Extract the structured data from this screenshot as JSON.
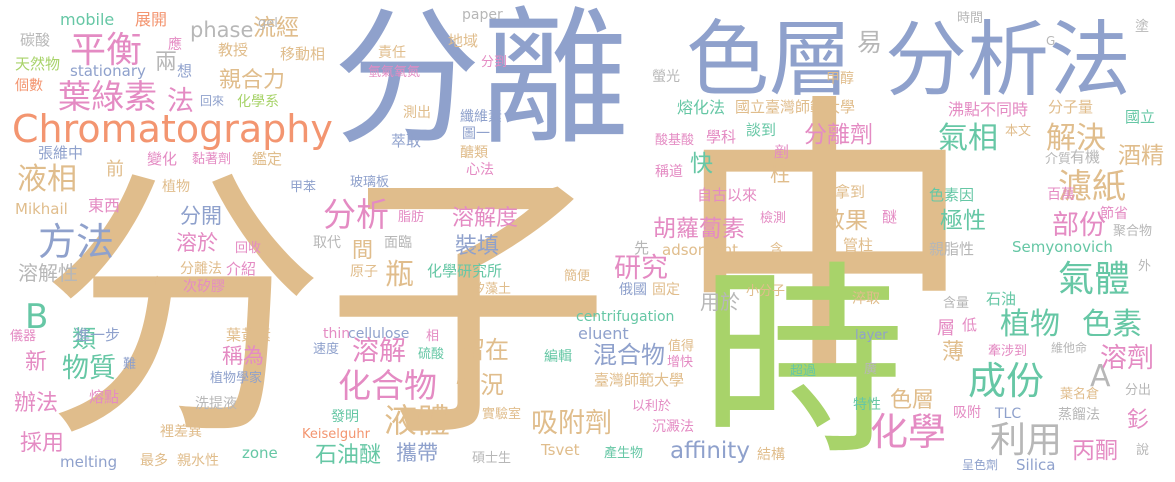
{
  "palette": {
    "tan": "#e0bd8c",
    "blue": "#8fa1cc",
    "green": "#a8d36a",
    "pink": "#e48bc3",
    "teal": "#66c7a5",
    "orange": "#f39570",
    "gray": "#b7b7b7",
    "yellow": "#e6c64a"
  },
  "words": [
    {
      "text": "分子",
      "color": "tan"
    },
    {
      "text": "中",
      "color": "tan"
    },
    {
      "text": "分離",
      "color": "blue"
    },
    {
      "text": "時",
      "color": "green"
    },
    {
      "text": "色層",
      "color": "blue"
    },
    {
      "text": "分析法",
      "color": "blue"
    },
    {
      "text": "Chromatography",
      "color": "orange"
    },
    {
      "text": "平衡",
      "color": "pink"
    },
    {
      "text": "葉綠素",
      "color": "pink"
    },
    {
      "text": "方法",
      "color": "blue"
    },
    {
      "text": "分析",
      "color": "pink"
    },
    {
      "text": "化合物",
      "color": "pink"
    },
    {
      "text": "液體",
      "color": "tan"
    },
    {
      "text": "成份",
      "color": "teal"
    },
    {
      "text": "化學",
      "color": "pink"
    },
    {
      "text": "利用",
      "color": "gray"
    },
    {
      "text": "氣體",
      "color": "teal"
    },
    {
      "text": "植物",
      "color": "teal"
    },
    {
      "text": "色素",
      "color": "teal"
    },
    {
      "text": "濾紙",
      "color": "tan"
    },
    {
      "text": "分離劑",
      "color": "pink"
    },
    {
      "text": "氣相",
      "color": "teal"
    },
    {
      "text": "解決",
      "color": "tan"
    },
    {
      "text": "部份",
      "color": "pink"
    },
    {
      "text": "溶劑",
      "color": "pink"
    },
    {
      "text": "物質",
      "color": "teal"
    },
    {
      "text": "溶解",
      "color": "pink"
    },
    {
      "text": "研究",
      "color": "pink"
    },
    {
      "text": "吸附劑",
      "color": "tan"
    },
    {
      "text": "情況",
      "color": "tan"
    },
    {
      "text": "留在",
      "color": "tan"
    },
    {
      "text": "混合物",
      "color": "blue"
    },
    {
      "text": "胡蘿蔔素",
      "color": "pink"
    },
    {
      "text": "溶解度",
      "color": "pink"
    },
    {
      "text": "裝填",
      "color": "blue"
    },
    {
      "text": "瓶",
      "color": "tan"
    },
    {
      "text": "液相",
      "color": "tan"
    },
    {
      "text": "B",
      "color": "teal"
    },
    {
      "text": "A",
      "color": "gray"
    },
    {
      "text": "易",
      "color": "gray"
    },
    {
      "text": "法",
      "color": "pink"
    },
    {
      "text": "流經",
      "color": "tan"
    },
    {
      "text": "phase",
      "color": "gray"
    },
    {
      "text": "親合力",
      "color": "tan"
    },
    {
      "text": "兩",
      "color": "gray"
    },
    {
      "text": "效果",
      "color": "tan"
    },
    {
      "text": "極性",
      "color": "teal"
    },
    {
      "text": "快",
      "color": "teal"
    },
    {
      "text": "柱",
      "color": "tan"
    },
    {
      "text": "色層",
      "color": "tan"
    },
    {
      "text": "石油醚",
      "color": "teal"
    },
    {
      "text": "攜帶",
      "color": "blue"
    },
    {
      "text": "affinity",
      "color": "blue"
    },
    {
      "text": "丙酮",
      "color": "pink"
    },
    {
      "text": "酒精",
      "color": "tan"
    },
    {
      "text": "溶解性",
      "color": "gray"
    },
    {
      "text": "分開",
      "color": "blue"
    },
    {
      "text": "溶於",
      "color": "pink"
    },
    {
      "text": "稱為",
      "color": "pink"
    },
    {
      "text": "類",
      "color": "teal"
    },
    {
      "text": "辦法",
      "color": "pink"
    },
    {
      "text": "採用",
      "color": "pink"
    },
    {
      "text": "新",
      "color": "pink"
    },
    {
      "text": "薄",
      "color": "tan"
    },
    {
      "text": "層",
      "color": "pink"
    },
    {
      "text": "釤",
      "color": "pink"
    },
    {
      "text": "用於",
      "color": "gray"
    },
    {
      "text": "間",
      "color": "tan"
    },
    {
      "text": "碳酸",
      "color": "gray"
    },
    {
      "text": "mobile",
      "color": "teal"
    },
    {
      "text": "展開",
      "color": "orange"
    },
    {
      "text": "應",
      "color": "pink"
    },
    {
      "text": "天然物",
      "color": "green"
    },
    {
      "text": "stationary",
      "color": "blue"
    },
    {
      "text": "想",
      "color": "blue"
    },
    {
      "text": "個數",
      "color": "orange"
    },
    {
      "text": "教授",
      "color": "tan"
    },
    {
      "text": "移動相",
      "color": "tan"
    },
    {
      "text": "gel",
      "color": "gray"
    },
    {
      "text": "責任",
      "color": "tan"
    },
    {
      "text": "氫氣氧氮",
      "color": "pink"
    },
    {
      "text": "paper",
      "color": "gray"
    },
    {
      "text": "地域",
      "color": "tan"
    },
    {
      "text": "分到",
      "color": "pink"
    },
    {
      "text": "時間",
      "color": "gray"
    },
    {
      "text": "甲醇",
      "color": "tan"
    },
    {
      "text": "塗",
      "color": "gray"
    },
    {
      "text": "螢光",
      "color": "gray"
    },
    {
      "text": "熔化法",
      "color": "teal"
    },
    {
      "text": "國立臺灣師範大學",
      "color": "tan"
    },
    {
      "text": "沸點不同時",
      "color": "pink"
    },
    {
      "text": "分子量",
      "color": "tan"
    },
    {
      "text": "國立",
      "color": "teal"
    },
    {
      "text": "本文",
      "color": "tan"
    },
    {
      "text": "回來",
      "color": "blue"
    },
    {
      "text": "化學系",
      "color": "green"
    },
    {
      "text": "測出",
      "color": "tan"
    },
    {
      "text": "纖維素",
      "color": "blue"
    },
    {
      "text": "圖一",
      "color": "blue"
    },
    {
      "text": "萃取",
      "color": "blue"
    },
    {
      "text": "酸基酸",
      "color": "pink"
    },
    {
      "text": "學科",
      "color": "pink"
    },
    {
      "text": "談到",
      "color": "teal"
    },
    {
      "text": "張維中",
      "color": "blue"
    },
    {
      "text": "變化",
      "color": "pink"
    },
    {
      "text": "黏著劑",
      "color": "pink"
    },
    {
      "text": "鑑定",
      "color": "tan"
    },
    {
      "text": "醣類",
      "color": "tan"
    },
    {
      "text": "心法",
      "color": "pink"
    },
    {
      "text": "剷",
      "color": "pink"
    },
    {
      "text": "介質",
      "color": "gray"
    },
    {
      "text": "有機",
      "color": "gray"
    },
    {
      "text": "前",
      "color": "tan"
    },
    {
      "text": "植物",
      "color": "tan"
    },
    {
      "text": "甲苯",
      "color": "blue"
    },
    {
      "text": "玻璃板",
      "color": "blue"
    },
    {
      "text": "稱道",
      "color": "pink"
    },
    {
      "text": "自古以來",
      "color": "pink"
    },
    {
      "text": "色素因",
      "color": "teal"
    },
    {
      "text": "百萬",
      "color": "pink"
    },
    {
      "text": "Mikhail",
      "color": "tan"
    },
    {
      "text": "東西",
      "color": "pink"
    },
    {
      "text": "脂肪",
      "color": "pink"
    },
    {
      "text": "拿到",
      "color": "tan"
    },
    {
      "text": "醚",
      "color": "pink"
    },
    {
      "text": "節省",
      "color": "pink"
    },
    {
      "text": "聚合物",
      "color": "gray"
    },
    {
      "text": "取代",
      "color": "gray"
    },
    {
      "text": "面臨",
      "color": "gray"
    },
    {
      "text": "先",
      "color": "gray"
    },
    {
      "text": "檢測",
      "color": "pink"
    },
    {
      "text": "管柱",
      "color": "tan"
    },
    {
      "text": "親脂性",
      "color": "gray"
    },
    {
      "text": "Semyonovich",
      "color": "teal"
    },
    {
      "text": "回收",
      "color": "pink"
    },
    {
      "text": "介紹",
      "color": "pink"
    },
    {
      "text": "分離法",
      "color": "tan"
    },
    {
      "text": "原子",
      "color": "tan"
    },
    {
      "text": "化學研究所",
      "color": "teal"
    },
    {
      "text": "adsorbent",
      "color": "tan"
    },
    {
      "text": "含",
      "color": "tan"
    },
    {
      "text": "外",
      "color": "gray"
    },
    {
      "text": "年",
      "color": "tan"
    },
    {
      "text": "次矽膠",
      "color": "pink"
    },
    {
      "text": "矽藻土",
      "color": "tan"
    },
    {
      "text": "簡便",
      "color": "tan"
    },
    {
      "text": "俄國",
      "color": "blue"
    },
    {
      "text": "固定",
      "color": "tan"
    },
    {
      "text": "小分子",
      "color": "tan"
    },
    {
      "text": "石油",
      "color": "teal"
    },
    {
      "text": "淬取",
      "color": "tan"
    },
    {
      "text": "含量",
      "color": "gray"
    },
    {
      "text": "低",
      "color": "pink"
    },
    {
      "text": "進一步",
      "color": "blue"
    },
    {
      "text": "葉黃素",
      "color": "tan"
    },
    {
      "text": "thin",
      "color": "pink"
    },
    {
      "text": "cellulose",
      "color": "blue"
    },
    {
      "text": "相",
      "color": "pink"
    },
    {
      "text": "eluent",
      "color": "blue"
    },
    {
      "text": "值得",
      "color": "tan"
    },
    {
      "text": "layer",
      "color": "blue"
    },
    {
      "text": "牽涉到",
      "color": "pink"
    },
    {
      "text": "維他命",
      "color": "gray"
    },
    {
      "text": "儀器",
      "color": "pink"
    },
    {
      "text": "難",
      "color": "blue"
    },
    {
      "text": "植物學家",
      "color": "blue"
    },
    {
      "text": "速度",
      "color": "blue"
    },
    {
      "text": "硫酸",
      "color": "teal"
    },
    {
      "text": "centrifugation",
      "color": "teal"
    },
    {
      "text": "增快",
      "color": "pink"
    },
    {
      "text": "編輯",
      "color": "teal"
    },
    {
      "text": "葉名倉",
      "color": "tan"
    },
    {
      "text": "超過",
      "color": "teal"
    },
    {
      "text": "廣",
      "color": "gray"
    },
    {
      "text": "分出",
      "color": "gray"
    },
    {
      "text": "熔點",
      "color": "pink"
    },
    {
      "text": "臺灣師範大學",
      "color": "tan"
    },
    {
      "text": "洗提液",
      "color": "gray"
    },
    {
      "text": "以利於",
      "color": "pink"
    },
    {
      "text": "特性",
      "color": "teal"
    },
    {
      "text": "吸附",
      "color": "pink"
    },
    {
      "text": "TLC",
      "color": "blue"
    },
    {
      "text": "蒸餾法",
      "color": "gray"
    },
    {
      "text": "實驗室",
      "color": "tan"
    },
    {
      "text": "發明",
      "color": "teal"
    },
    {
      "text": "Keiselguhr",
      "color": "orange"
    },
    {
      "text": "沉澱法",
      "color": "pink"
    },
    {
      "text": "裡差異",
      "color": "tan"
    },
    {
      "text": "說",
      "color": "gray"
    },
    {
      "text": "Tsvet",
      "color": "tan"
    },
    {
      "text": "結構",
      "color": "tan"
    },
    {
      "text": "Silica",
      "color": "blue"
    },
    {
      "text": "zone",
      "color": "teal"
    },
    {
      "text": "melting",
      "color": "blue"
    },
    {
      "text": "最多",
      "color": "tan"
    },
    {
      "text": "親水性",
      "color": "tan"
    },
    {
      "text": "碩士生",
      "color": "gray"
    },
    {
      "text": "產生物",
      "color": "teal"
    },
    {
      "text": "呈色劑",
      "color": "blue"
    },
    {
      "text": "G",
      "color": "gray"
    }
  ]
}
